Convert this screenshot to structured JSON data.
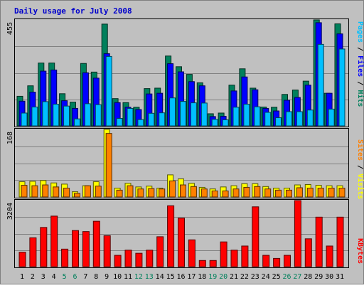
{
  "title": "Daily usage for July 2008",
  "colors": {
    "background": "#c0c0c0",
    "border": "#808080",
    "title": "#0000cc",
    "pages": "#00c0ff",
    "files": "#0000ff",
    "hits": "#00805c",
    "visits": "#ffff00",
    "sites": "#ff8000",
    "kbytes": "#ff0000",
    "weekend_label": "#00805c",
    "weekday_label": "#000000"
  },
  "chart_data": [
    {
      "type": "bar",
      "panel": "hits-files-pages",
      "ymax_label": "455",
      "right_label": {
        "pages": "Pages",
        "files": "Files",
        "hits": "Hits",
        "sep": " / "
      },
      "ylim": [
        0,
        455
      ],
      "categories": [
        "1",
        "2",
        "3",
        "4",
        "5",
        "6",
        "7",
        "8",
        "9",
        "10",
        "11",
        "12",
        "13",
        "14",
        "15",
        "16",
        "17",
        "18",
        "19",
        "20",
        "21",
        "22",
        "23",
        "24",
        "25",
        "26",
        "27",
        "28",
        "29",
        "30",
        "31"
      ],
      "series": [
        {
          "key": "hits",
          "values": [
            127,
            172,
            270,
            270,
            138,
            102,
            268,
            231,
            437,
            117,
            100,
            80,
            160,
            162,
            300,
            254,
            221,
            185,
            52,
            55,
            175,
            245,
            162,
            81,
            80,
            135,
            154,
            192,
            455,
            140,
            438
          ]
        },
        {
          "key": "files",
          "values": [
            106,
            145,
            235,
            240,
            108,
            75,
            228,
            205,
            310,
            100,
            80,
            70,
            137,
            140,
            267,
            232,
            190,
            172,
            40,
            41,
            150,
            210,
            155,
            75,
            64,
            110,
            122,
            175,
            443,
            140,
            395
          ]
        },
        {
          "key": "pages",
          "values": [
            55,
            81,
            104,
            93,
            85,
            30,
            95,
            91,
            298,
            32,
            75,
            27,
            54,
            56,
            120,
            105,
            99,
            98,
            28,
            26,
            80,
            93,
            82,
            58,
            35,
            61,
            61,
            68,
            350,
            72,
            330
          ]
        }
      ],
      "weekend_days": [
        "5",
        "6",
        "12",
        "13",
        "19",
        "20",
        "26",
        "27"
      ]
    },
    {
      "type": "bar",
      "panel": "visits-sites",
      "ymax_label": "168",
      "right_label": {
        "sites": "Sites",
        "visits": "Visits",
        "sep": " / "
      },
      "ylim": [
        0,
        168
      ],
      "series": [
        {
          "key": "visits",
          "values": [
            38,
            39,
            41,
            35,
            32,
            13,
            28,
            38,
            168,
            22,
            34,
            25,
            27,
            22,
            55,
            45,
            34,
            24,
            20,
            25,
            28,
            33,
            33,
            26,
            22,
            22,
            30,
            31,
            29,
            28,
            28
          ]
        },
        {
          "key": "sites",
          "values": [
            29,
            28,
            30,
            25,
            22,
            9,
            28,
            27,
            158,
            17,
            28,
            20,
            21,
            20,
            40,
            30,
            26,
            20,
            15,
            15,
            20,
            24,
            26,
            20,
            17,
            17,
            23,
            22,
            22,
            22,
            22
          ]
        }
      ]
    },
    {
      "type": "bar",
      "panel": "kbytes",
      "ymax_label": "3204",
      "right_label": "KBytes",
      "ylim": [
        0,
        3204
      ],
      "series": [
        {
          "key": "kbytes",
          "values": [
            700,
            1400,
            1900,
            2450,
            850,
            1750,
            1700,
            2200,
            1500,
            550,
            800,
            650,
            800,
            1450,
            2950,
            2350,
            1300,
            300,
            300,
            1200,
            800,
            1000,
            2900,
            550,
            400,
            550,
            3204,
            1350,
            2400,
            1000,
            2400
          ]
        }
      ]
    }
  ]
}
